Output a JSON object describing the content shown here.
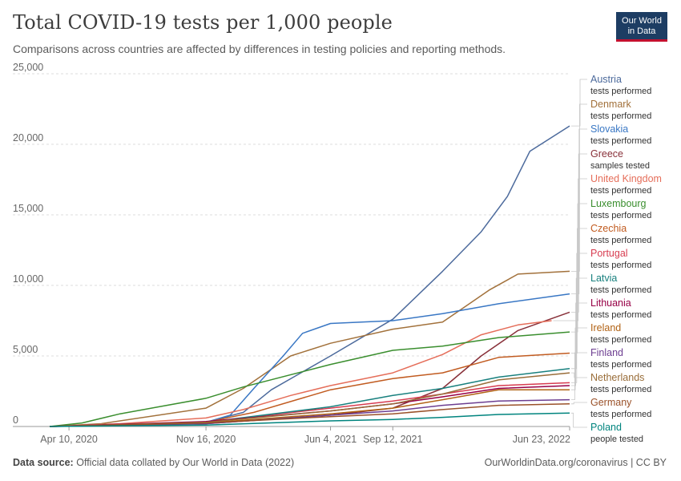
{
  "header": {
    "title": "Total COVID-19 tests per 1,000 people",
    "subtitle": "Comparisons across countries are affected by differences in testing policies and reporting methods.",
    "logo_line1": "Our World",
    "logo_line2": "in Data",
    "logo_colors": {
      "background": "#1d3d63",
      "underline": "#c3102f"
    }
  },
  "footer": {
    "source_label": "Data source:",
    "source_text": "Official data collated by Our World in Data (2022)",
    "url": "OurWorldinData.org/coronavirus | CC BY"
  },
  "chart_data": {
    "type": "line",
    "title": "Total COVID-19 tests per 1,000 people",
    "subtitle": "Comparisons across countries are affected by differences in testing policies and reporting methods.",
    "ylim": [
      0,
      25000
    ],
    "y_ticks": [
      0,
      5000,
      10000,
      15000,
      20000,
      25000
    ],
    "y_tick_labels": [
      "0",
      "5,000",
      "10,000",
      "15,000",
      "20,000",
      "25,000"
    ],
    "x_range": [
      "2020-03-10",
      "2022-06-23"
    ],
    "x_ticks": [
      "2020-04-10",
      "2020-11-16",
      "2021-06-04",
      "2021-09-12",
      "2022-06-23"
    ],
    "x_tick_labels": [
      "Apr 10, 2020",
      "Nov 16, 2020",
      "Jun 4, 2021",
      "Sep 12, 2021",
      "Jun 23, 2022"
    ],
    "grid": "horizontal dashed",
    "legend_placement": "right, labels at line ends",
    "series": [
      {
        "name": "Austria",
        "sub": "tests performed",
        "color": "#4c6a9c",
        "points": [
          [
            "2020-03-10",
            0
          ],
          [
            "2020-07-01",
            60
          ],
          [
            "2020-11-16",
            300
          ],
          [
            "2021-01-15",
            1000
          ],
          [
            "2021-03-01",
            2600
          ],
          [
            "2021-06-04",
            5000
          ],
          [
            "2021-09-12",
            7600
          ],
          [
            "2021-12-01",
            11000
          ],
          [
            "2022-02-01",
            13800
          ],
          [
            "2022-03-15",
            16300
          ],
          [
            "2022-04-20",
            19500
          ],
          [
            "2022-06-23",
            21300
          ]
        ]
      },
      {
        "name": "Denmark",
        "sub": "tests performed",
        "color": "#a2713b",
        "points": [
          [
            "2020-03-10",
            0
          ],
          [
            "2020-06-01",
            200
          ],
          [
            "2020-11-16",
            1300
          ],
          [
            "2021-01-15",
            2700
          ],
          [
            "2021-04-01",
            5000
          ],
          [
            "2021-06-04",
            5900
          ],
          [
            "2021-09-12",
            6900
          ],
          [
            "2021-12-01",
            7400
          ],
          [
            "2022-02-15",
            9700
          ],
          [
            "2022-04-01",
            10800
          ],
          [
            "2022-06-23",
            11000
          ]
        ]
      },
      {
        "name": "Slovakia",
        "sub": "tests performed",
        "color": "#3977c4",
        "points": [
          [
            "2020-03-10",
            0
          ],
          [
            "2020-11-16",
            300
          ],
          [
            "2020-12-25",
            800
          ],
          [
            "2021-02-01",
            2700
          ],
          [
            "2021-03-20",
            5000
          ],
          [
            "2021-04-20",
            6600
          ],
          [
            "2021-06-04",
            7300
          ],
          [
            "2021-09-12",
            7500
          ],
          [
            "2021-12-01",
            8000
          ],
          [
            "2022-03-01",
            8700
          ],
          [
            "2022-06-23",
            9400
          ]
        ]
      },
      {
        "name": "Greece",
        "sub": "samples tested",
        "color": "#883039",
        "points": [
          [
            "2020-03-10",
            0
          ],
          [
            "2020-11-16",
            200
          ],
          [
            "2021-06-04",
            800
          ],
          [
            "2021-09-12",
            1300
          ],
          [
            "2021-12-01",
            2700
          ],
          [
            "2022-02-01",
            5000
          ],
          [
            "2022-04-01",
            6800
          ],
          [
            "2022-06-23",
            8100
          ]
        ]
      },
      {
        "name": "United Kingdom",
        "sub": "tests performed",
        "color": "#e56e5a",
        "points": [
          [
            "2020-03-10",
            0
          ],
          [
            "2020-07-01",
            200
          ],
          [
            "2020-11-16",
            600
          ],
          [
            "2021-01-15",
            1200
          ],
          [
            "2021-04-01",
            2200
          ],
          [
            "2021-06-04",
            2900
          ],
          [
            "2021-09-12",
            3800
          ],
          [
            "2021-12-01",
            5100
          ],
          [
            "2022-02-01",
            6500
          ],
          [
            "2022-04-01",
            7200
          ],
          [
            "2022-05-25",
            7500
          ]
        ]
      },
      {
        "name": "Luxembourg",
        "sub": "tests performed",
        "color": "#3a8e2e",
        "points": [
          [
            "2020-03-10",
            0
          ],
          [
            "2020-05-01",
            250
          ],
          [
            "2020-07-01",
            900
          ],
          [
            "2020-11-16",
            2000
          ],
          [
            "2021-01-15",
            2800
          ],
          [
            "2021-06-04",
            4400
          ],
          [
            "2021-09-12",
            5400
          ],
          [
            "2021-12-01",
            5700
          ],
          [
            "2022-03-01",
            6300
          ],
          [
            "2022-06-23",
            6700
          ]
        ]
      },
      {
        "name": "Czechia",
        "sub": "tests performed",
        "color": "#c15b20",
        "points": [
          [
            "2020-03-10",
            0
          ],
          [
            "2020-11-16",
            300
          ],
          [
            "2021-02-01",
            1000
          ],
          [
            "2021-06-04",
            2600
          ],
          [
            "2021-09-12",
            3400
          ],
          [
            "2021-12-01",
            3800
          ],
          [
            "2022-03-01",
            4900
          ],
          [
            "2022-06-23",
            5200
          ]
        ]
      },
      {
        "name": "Portugal",
        "sub": "tests performed",
        "color": "#d73c50",
        "points": [
          [
            "2020-03-10",
            0
          ],
          [
            "2020-11-16",
            300
          ],
          [
            "2021-06-04",
            1300
          ],
          [
            "2021-09-12",
            1800
          ],
          [
            "2021-12-01",
            2300
          ],
          [
            "2022-03-01",
            2900
          ],
          [
            "2022-06-23",
            3100
          ]
        ]
      },
      {
        "name": "Latvia",
        "sub": "tests performed",
        "color": "#18807e",
        "points": [
          [
            "2020-03-10",
            0
          ],
          [
            "2020-11-16",
            300
          ],
          [
            "2021-06-04",
            1400
          ],
          [
            "2021-09-12",
            2200
          ],
          [
            "2021-12-01",
            2700
          ],
          [
            "2022-03-01",
            3500
          ],
          [
            "2022-06-23",
            4100
          ]
        ]
      },
      {
        "name": "Lithuania",
        "sub": "tests performed",
        "color": "#970046",
        "points": [
          [
            "2020-03-10",
            0
          ],
          [
            "2020-11-16",
            350
          ],
          [
            "2021-06-04",
            1100
          ],
          [
            "2021-09-12",
            1600
          ],
          [
            "2021-12-01",
            2100
          ],
          [
            "2022-03-01",
            2700
          ],
          [
            "2022-06-23",
            2900
          ]
        ]
      },
      {
        "name": "Ireland",
        "sub": "tests performed",
        "color": "#b16214",
        "points": [
          [
            "2020-03-10",
            0
          ],
          [
            "2020-11-16",
            250
          ],
          [
            "2021-06-04",
            900
          ],
          [
            "2021-09-12",
            1300
          ],
          [
            "2021-12-01",
            1900
          ],
          [
            "2022-03-01",
            2600
          ],
          [
            "2022-06-23",
            2600
          ]
        ]
      },
      {
        "name": "Finland",
        "sub": "tests performed",
        "color": "#6d3e91",
        "points": [
          [
            "2020-03-10",
            0
          ],
          [
            "2020-11-16",
            200
          ],
          [
            "2021-06-04",
            800
          ],
          [
            "2021-09-12",
            1100
          ],
          [
            "2021-12-01",
            1500
          ],
          [
            "2022-03-01",
            1800
          ],
          [
            "2022-06-23",
            1900
          ]
        ]
      },
      {
        "name": "Netherlands",
        "sub": "tests performed",
        "color": "#996d39",
        "points": [
          [
            "2020-03-10",
            0
          ],
          [
            "2020-11-16",
            300
          ],
          [
            "2021-06-04",
            1100
          ],
          [
            "2021-09-12",
            1600
          ],
          [
            "2021-12-01",
            2300
          ],
          [
            "2022-03-01",
            3300
          ],
          [
            "2022-06-23",
            3800
          ]
        ]
      },
      {
        "name": "Germany",
        "sub": "tests performed",
        "color": "#9a5129",
        "points": [
          [
            "2020-03-10",
            0
          ],
          [
            "2020-11-16",
            250
          ],
          [
            "2021-06-04",
            700
          ],
          [
            "2021-09-12",
            900
          ],
          [
            "2021-12-01",
            1200
          ],
          [
            "2022-03-01",
            1500
          ],
          [
            "2022-06-23",
            1600
          ]
        ]
      },
      {
        "name": "Poland",
        "sub": "people tested",
        "color": "#00847e",
        "points": [
          [
            "2020-03-10",
            0
          ],
          [
            "2020-11-16",
            100
          ],
          [
            "2021-06-04",
            400
          ],
          [
            "2021-09-12",
            500
          ],
          [
            "2021-12-01",
            650
          ],
          [
            "2022-03-01",
            850
          ],
          [
            "2022-06-23",
            950
          ]
        ]
      }
    ]
  }
}
